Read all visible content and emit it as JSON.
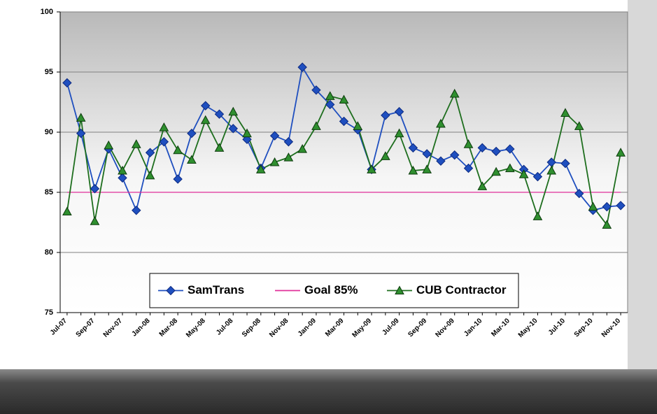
{
  "chart_data": {
    "type": "line",
    "categories": [
      "Jul-07",
      null,
      "Sep-07",
      null,
      "Nov-07",
      null,
      "Jan-08",
      null,
      "Mar-08",
      null,
      "May-08",
      null,
      "Jul-08",
      null,
      "Sep-08",
      null,
      "Nov-08",
      null,
      "Jan-09",
      null,
      "Mar-09",
      null,
      "May-09",
      null,
      "Jul-09",
      null,
      "Sep-09",
      null,
      "Nov-09",
      null,
      "Jan-10",
      null,
      "Mar-10",
      null,
      "May-10",
      null,
      "Jul-10",
      null,
      "Sep-10",
      null,
      "Nov-10"
    ],
    "series": [
      {
        "name": "SamTrans",
        "color": "#1f4fbf",
        "marker": "diamond",
        "values": [
          94.1,
          89.9,
          85.3,
          88.6,
          86.2,
          83.5,
          88.3,
          89.2,
          86.1,
          89.9,
          92.2,
          91.5,
          90.3,
          89.4,
          87.0,
          89.7,
          89.2,
          95.4,
          93.5,
          92.3,
          90.9,
          90.2,
          86.9,
          91.4,
          91.7,
          88.7,
          88.2,
          87.6,
          88.1,
          87.0,
          88.7,
          88.4,
          88.6,
          86.9,
          86.3,
          87.5,
          87.4,
          84.9,
          83.5,
          83.8,
          83.9
        ]
      },
      {
        "name": "Goal 85%",
        "color": "#e0309a",
        "marker": "none",
        "values": [
          85,
          85,
          85,
          85,
          85,
          85,
          85,
          85,
          85,
          85,
          85,
          85,
          85,
          85,
          85,
          85,
          85,
          85,
          85,
          85,
          85,
          85,
          85,
          85,
          85,
          85,
          85,
          85,
          85,
          85,
          85,
          85,
          85,
          85,
          85,
          85,
          85,
          85,
          85,
          85,
          85
        ]
      },
      {
        "name": "CUB Contractor",
        "color": "#1e6e1e",
        "marker": "triangle",
        "values": [
          83.4,
          91.2,
          82.6,
          88.9,
          86.8,
          89.0,
          86.4,
          90.4,
          88.5,
          87.7,
          91.0,
          88.7,
          91.7,
          89.9,
          86.9,
          87.5,
          87.9,
          88.6,
          90.5,
          93.0,
          92.7,
          90.5,
          86.9,
          88.0,
          89.9,
          86.8,
          86.9,
          90.7,
          93.2,
          89.0,
          85.5,
          86.7,
          87.0,
          86.5,
          83.0,
          86.8,
          91.6,
          90.5,
          83.8,
          82.3,
          88.3
        ]
      }
    ],
    "ylim": [
      75,
      100
    ],
    "yticks": [
      75,
      80,
      85,
      90,
      95,
      100
    ],
    "grid": true,
    "legend": "bottom"
  }
}
